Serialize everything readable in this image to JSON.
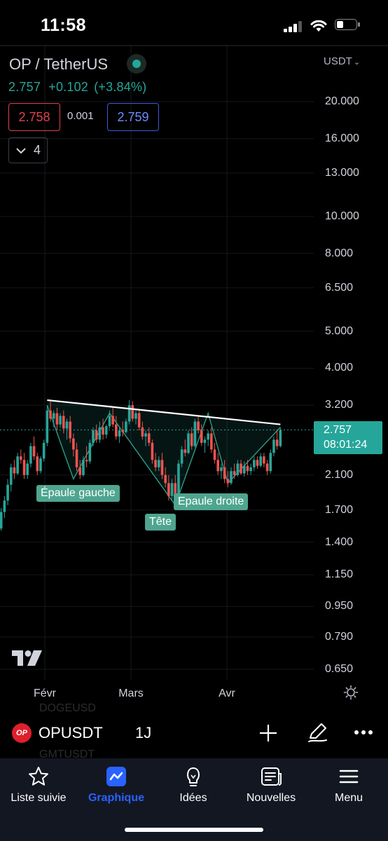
{
  "status_bar": {
    "time": "11:58"
  },
  "header": {
    "pair_title": "OP / TetherUS",
    "last_price": "2.757",
    "change": "+0.102",
    "change_pct": "(+3.84%)",
    "bid": "2.758",
    "spread": "0.001",
    "ask": "2.759",
    "indicator_count": "4",
    "currency": "USDT"
  },
  "price_axis": {
    "ticks": [
      "20.000",
      "16.000",
      "13.000",
      "10.000",
      "8.000",
      "6.500",
      "5.000",
      "4.000",
      "3.200",
      "2.100",
      "1.700",
      "1.400",
      "1.150",
      "0.950",
      "0.790",
      "0.650"
    ],
    "current_price": "2.757",
    "countdown": "08:01:24"
  },
  "time_axis": {
    "ticks": [
      "Févr",
      "Mars",
      "Avr"
    ]
  },
  "pattern_labels": {
    "left_shoulder": "Épaule gauche",
    "head": "Tête",
    "right_shoulder": "Epaule droite"
  },
  "symbol_toolbar": {
    "badge": "OP",
    "symbol": "OPUSDT",
    "interval": "1J",
    "ghost_above": "DOGEUSD",
    "ghost_below": "GMTUSDT"
  },
  "bottom_nav": {
    "items": [
      {
        "label": "Liste suivie",
        "icon": "star-icon",
        "active": false
      },
      {
        "label": "Graphique",
        "icon": "chart-icon",
        "active": true
      },
      {
        "label": "Idées",
        "icon": "lightbulb-icon",
        "active": false
      },
      {
        "label": "Nouvelles",
        "icon": "news-icon",
        "active": false
      },
      {
        "label": "Menu",
        "icon": "hamburger-icon",
        "active": false
      }
    ]
  },
  "colors": {
    "up": "#26a69a",
    "down": "#ef5350",
    "accent": "#2962ff",
    "bid": "#e0414f",
    "ask": "#3d5bd6"
  },
  "chart_data": {
    "type": "candlestick",
    "scale": "log",
    "ylim": [
      0.62,
      24
    ],
    "price_ticks": [
      20,
      16,
      13,
      10,
      8,
      6.5,
      5,
      4,
      3.2,
      2.1,
      1.7,
      1.4,
      1.15,
      0.95,
      0.79,
      0.65
    ],
    "x_labels": [
      "Févr",
      "Mars",
      "Avr"
    ],
    "candles": [
      [
        1.55,
        1.6,
        1.48,
        1.52
      ],
      [
        1.52,
        1.72,
        1.5,
        1.68
      ],
      [
        1.68,
        1.85,
        1.62,
        1.8
      ],
      [
        1.8,
        2.05,
        1.75,
        1.98
      ],
      [
        1.98,
        2.25,
        1.9,
        2.2
      ],
      [
        2.2,
        2.3,
        2.05,
        2.12
      ],
      [
        2.12,
        2.4,
        2.1,
        2.35
      ],
      [
        2.35,
        2.45,
        2.25,
        2.3
      ],
      [
        2.3,
        2.4,
        2.05,
        2.1
      ],
      [
        2.1,
        2.3,
        2.05,
        2.25
      ],
      [
        2.25,
        2.55,
        2.2,
        2.5
      ],
      [
        2.5,
        2.65,
        2.3,
        2.35
      ],
      [
        2.35,
        2.4,
        2.1,
        2.15
      ],
      [
        2.15,
        2.35,
        2.12,
        2.32
      ],
      [
        2.32,
        2.6,
        2.28,
        2.55
      ],
      [
        2.55,
        3.2,
        2.5,
        3.1
      ],
      [
        3.1,
        3.3,
        2.9,
        2.95
      ],
      [
        2.95,
        3.1,
        2.8,
        3.05
      ],
      [
        3.05,
        3.15,
        2.75,
        2.85
      ],
      [
        2.85,
        3.05,
        2.8,
        3.0
      ],
      [
        3.0,
        3.1,
        2.7,
        2.78
      ],
      [
        2.78,
        2.95,
        2.6,
        2.9
      ],
      [
        2.9,
        3.0,
        2.55,
        2.62
      ],
      [
        2.62,
        2.7,
        2.35,
        2.45
      ],
      [
        2.45,
        2.55,
        2.15,
        2.2
      ],
      [
        2.2,
        2.3,
        2.05,
        2.1
      ],
      [
        2.1,
        2.35,
        2.08,
        2.3
      ],
      [
        2.3,
        2.5,
        2.2,
        2.28
      ],
      [
        2.28,
        2.6,
        2.25,
        2.55
      ],
      [
        2.55,
        2.8,
        2.5,
        2.75
      ],
      [
        2.75,
        2.85,
        2.55,
        2.6
      ],
      [
        2.6,
        2.9,
        2.55,
        2.8
      ],
      [
        2.8,
        2.95,
        2.6,
        2.68
      ],
      [
        2.68,
        2.85,
        2.62,
        2.82
      ],
      [
        2.82,
        3.1,
        2.78,
        3.0
      ],
      [
        3.0,
        3.15,
        2.8,
        2.85
      ],
      [
        2.85,
        3.0,
        2.6,
        2.65
      ],
      [
        2.65,
        2.8,
        2.55,
        2.75
      ],
      [
        2.75,
        2.9,
        2.65,
        2.72
      ],
      [
        2.72,
        2.95,
        2.7,
        2.9
      ],
      [
        2.9,
        3.3,
        2.85,
        3.2
      ],
      [
        3.2,
        3.28,
        2.9,
        2.95
      ],
      [
        2.95,
        3.1,
        2.85,
        3.05
      ],
      [
        3.05,
        3.1,
        2.75,
        2.8
      ],
      [
        2.8,
        2.9,
        2.6,
        2.65
      ],
      [
        2.65,
        2.75,
        2.5,
        2.7
      ],
      [
        2.7,
        2.8,
        2.5,
        2.55
      ],
      [
        2.55,
        2.6,
        2.25,
        2.3
      ],
      [
        2.3,
        2.4,
        2.15,
        2.2
      ],
      [
        2.2,
        2.35,
        2.15,
        2.3
      ],
      [
        2.3,
        2.4,
        2.05,
        2.1
      ],
      [
        2.1,
        2.2,
        1.95,
        2.0
      ],
      [
        2.0,
        2.1,
        1.8,
        1.85
      ],
      [
        1.85,
        2.05,
        1.8,
        2.0
      ],
      [
        2.0,
        2.1,
        1.75,
        1.8
      ],
      [
        1.8,
        2.3,
        1.78,
        2.25
      ],
      [
        2.25,
        2.5,
        2.2,
        2.45
      ],
      [
        2.45,
        2.6,
        2.35,
        2.4
      ],
      [
        2.4,
        2.75,
        2.38,
        2.7
      ],
      [
        2.7,
        2.8,
        2.45,
        2.5
      ],
      [
        2.5,
        2.95,
        2.48,
        2.9
      ],
      [
        2.9,
        3.0,
        2.7,
        2.75
      ],
      [
        2.75,
        2.85,
        2.5,
        2.55
      ],
      [
        2.55,
        2.65,
        2.4,
        2.6
      ],
      [
        2.6,
        2.75,
        2.5,
        2.7
      ],
      [
        2.7,
        2.8,
        2.4,
        2.45
      ],
      [
        2.45,
        2.55,
        2.25,
        2.3
      ],
      [
        2.3,
        2.4,
        2.1,
        2.15
      ],
      [
        2.15,
        2.25,
        2.05,
        2.2
      ],
      [
        2.2,
        2.3,
        2.0,
        2.05
      ],
      [
        2.05,
        2.15,
        1.95,
        2.0
      ],
      [
        2.0,
        2.2,
        1.98,
        2.15
      ],
      [
        2.15,
        2.25,
        2.05,
        2.1
      ],
      [
        2.1,
        2.3,
        2.08,
        2.25
      ],
      [
        2.25,
        2.3,
        2.1,
        2.12
      ],
      [
        2.12,
        2.28,
        2.08,
        2.22
      ],
      [
        2.22,
        2.3,
        2.1,
        2.15
      ],
      [
        2.15,
        2.25,
        2.1,
        2.2
      ],
      [
        2.2,
        2.35,
        2.15,
        2.3
      ],
      [
        2.3,
        2.35,
        2.18,
        2.22
      ],
      [
        2.22,
        2.4,
        2.2,
        2.35
      ],
      [
        2.35,
        2.4,
        2.2,
        2.25
      ],
      [
        2.25,
        2.3,
        2.1,
        2.15
      ],
      [
        2.15,
        2.45,
        2.12,
        2.4
      ],
      [
        2.4,
        2.65,
        2.35,
        2.6
      ],
      [
        2.6,
        2.75,
        2.45,
        2.5
      ],
      [
        2.5,
        2.8,
        2.48,
        2.757
      ]
    ],
    "neckline": [
      [
        15,
        3.3
      ],
      [
        86,
        2.85
      ]
    ],
    "pattern_points": [
      [
        15,
        3.2
      ],
      [
        23,
        2.05
      ],
      [
        34,
        3.05
      ],
      [
        54,
        1.75
      ],
      [
        64,
        3.05
      ],
      [
        70,
        2.0
      ],
      [
        86,
        2.8
      ]
    ]
  }
}
